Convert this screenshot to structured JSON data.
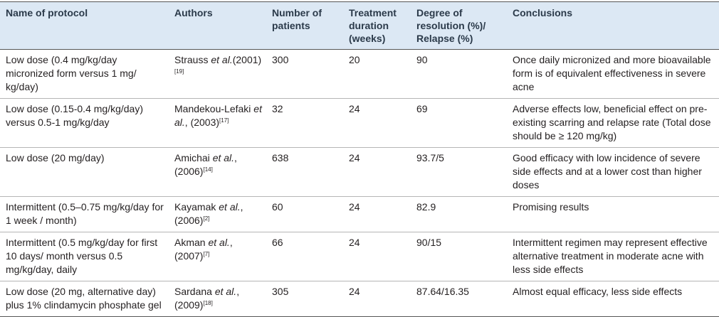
{
  "table": {
    "header": [
      "Name of protocol",
      "Authors",
      "Number of patients",
      "Treatment duration (weeks)",
      "Degree of resolution (%)/ Relapse (%)",
      "Conclusions"
    ],
    "rows": [
      {
        "protocol": "Low dose (0.4 mg/kg/day micronized form versus 1 mg/ kg/day)",
        "authors": {
          "name": "Strauss",
          "etal": "et al.",
          "year": "(2001)",
          "ref": "[19]"
        },
        "patients": 300,
        "duration": 20,
        "resolution": 90,
        "conclusion": "Once daily micronized and more bioavailable form is of equivalent effectiveness in severe acne"
      },
      {
        "protocol": "Low dose (0.15-0.4 mg/kg/day) versus 0.5-1 mg/kg/day",
        "authors": {
          "name": "Mandekou-Lefaki",
          "etal": "et al.",
          "year": ", (2003)",
          "ref": "[17]"
        },
        "patients": 32,
        "duration": 24,
        "resolution": 69,
        "conclusion": "Adverse effects low, beneficial effect on pre-existing scarring and relapse rate (Total dose should be ≥ 120 mg/kg)"
      },
      {
        "protocol": "Low dose (20 mg/day)",
        "authors": {
          "name": "Amichai",
          "etal": "et al.",
          "year": ", (2006)",
          "ref": "[14]"
        },
        "patients": 638,
        "duration": 24,
        "resolution": "93.7/5",
        "conclusion": "Good efficacy with low incidence of severe side effects and at a lower cost than higher doses"
      },
      {
        "protocol": "Intermittent (0.5–0.75 mg/kg/day for 1 week / month)",
        "authors": {
          "name": "Kayamak",
          "etal": "et al.",
          "year": ", (2006)",
          "ref": "[2]"
        },
        "patients": 60,
        "duration": 24,
        "resolution": 82.9,
        "conclusion": "Promising results"
      },
      {
        "protocol": "Intermittent (0.5 mg/kg/day for first 10 days/ month versus 0.5 mg/kg/day, daily",
        "authors": {
          "name": "Akman",
          "etal": "et al.",
          "year": ", (2007)",
          "ref": "[7]"
        },
        "patients": 66,
        "duration": 24,
        "resolution": "90/15",
        "conclusion": "Intermittent regimen may represent effective alternative treatment in moderate acne with less side effects"
      },
      {
        "protocol": "Low dose (20 mg, alternative day) plus 1% clindamycin phosphate gel",
        "authors": {
          "name": "Sardana",
          "etal": "et al.",
          "year": ", (2009)",
          "ref": "[18]"
        },
        "patients": 305,
        "duration": 24,
        "resolution": "87.64/16.35",
        "conclusion": "Almost equal efficacy, less side effects"
      }
    ]
  }
}
